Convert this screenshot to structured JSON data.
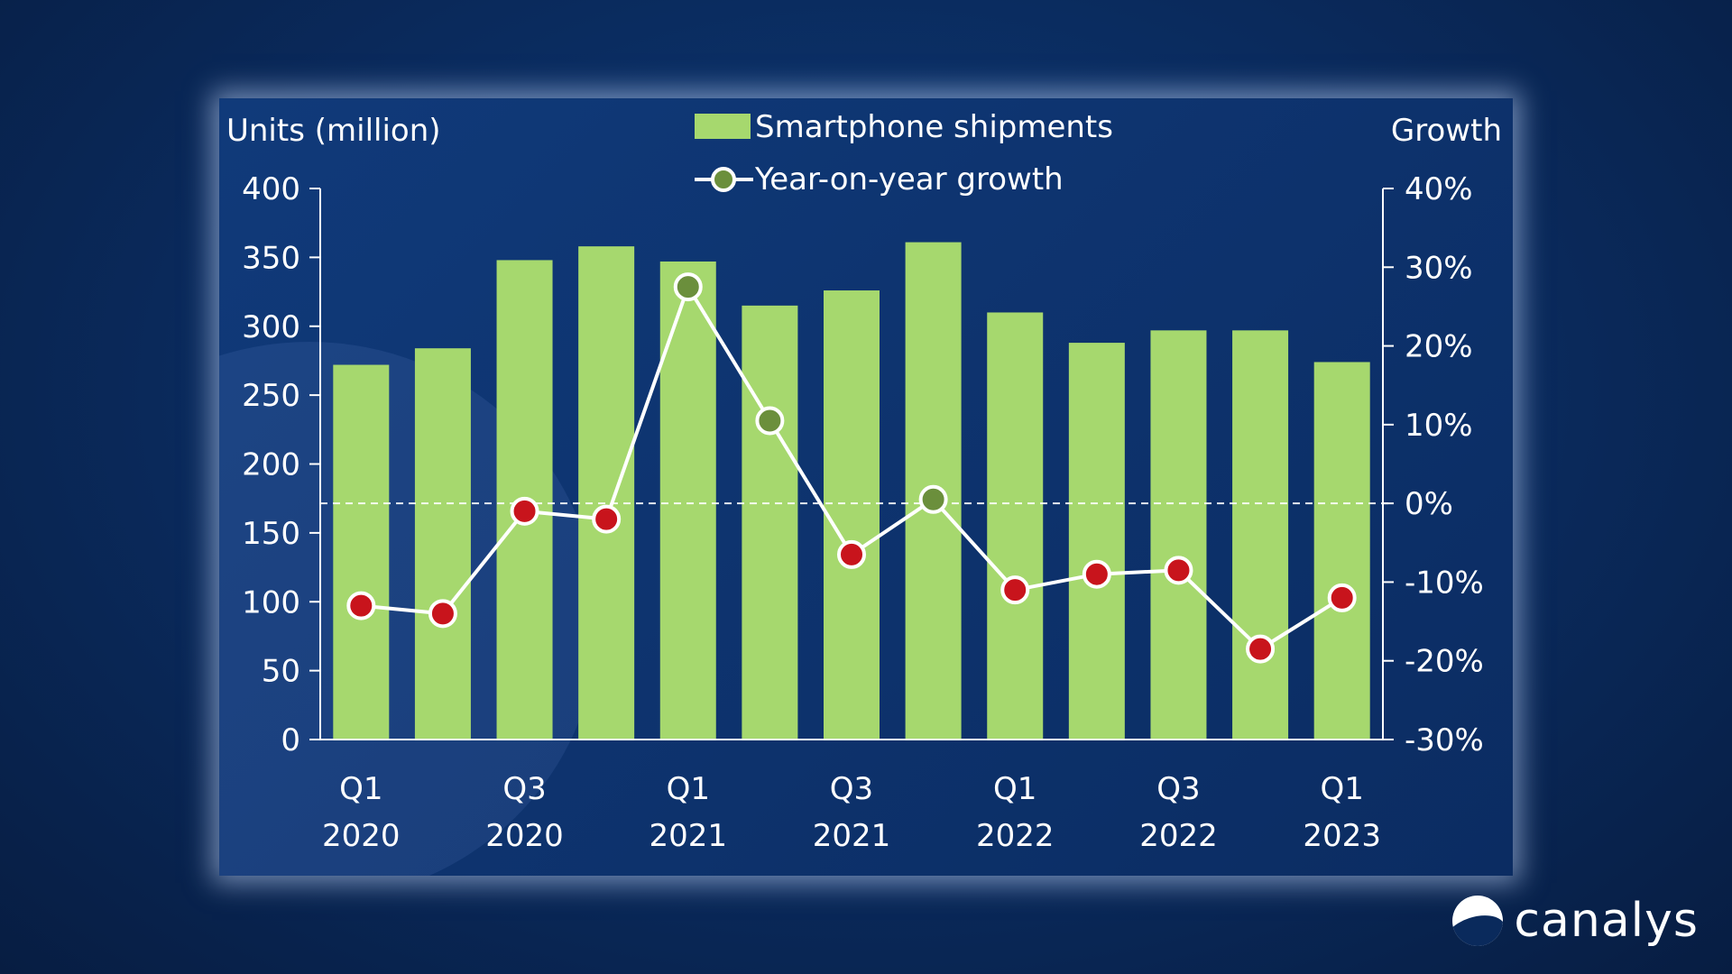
{
  "chart_data": {
    "type": "bar",
    "categories": [
      "Q1 2020",
      "Q2 2020",
      "Q3 2020",
      "Q4 2020",
      "Q1 2021",
      "Q2 2021",
      "Q3 2021",
      "Q4 2021",
      "Q1 2022",
      "Q2 2022",
      "Q3 2022",
      "Q4 2022",
      "Q1 2023"
    ],
    "x_tick_labels": [
      {
        "index": 0,
        "line1": "Q1",
        "line2": "2020"
      },
      {
        "index": 2,
        "line1": "Q3",
        "line2": "2020"
      },
      {
        "index": 4,
        "line1": "Q1",
        "line2": "2021"
      },
      {
        "index": 6,
        "line1": "Q3",
        "line2": "2021"
      },
      {
        "index": 8,
        "line1": "Q1",
        "line2": "2022"
      },
      {
        "index": 10,
        "line1": "Q3",
        "line2": "2022"
      },
      {
        "index": 12,
        "line1": "Q1",
        "line2": "2023"
      }
    ],
    "series": [
      {
        "name": "Smartphone shipments",
        "type": "bar",
        "axis": "left",
        "color": "#a6d86e",
        "values": [
          272,
          284,
          348,
          358,
          347,
          315,
          326,
          361,
          310,
          288,
          297,
          297,
          274
        ]
      },
      {
        "name": "Year-on-year growth",
        "type": "line",
        "axis": "right",
        "color": "#ffffff",
        "values": [
          -13,
          -14,
          -1,
          -2,
          27.5,
          10.5,
          -6.5,
          0.5,
          -11,
          -9,
          -8.5,
          -18.5,
          -12
        ]
      }
    ],
    "ylabel_left": "Units (million)",
    "ylim_left": [
      0,
      400
    ],
    "yticks_left": [
      "400",
      "350",
      "300",
      "250",
      "200",
      "150",
      "100",
      "50",
      "0"
    ],
    "ylabel_right": "Growth",
    "ylim_right": [
      -30,
      40
    ],
    "yticks_right": [
      "40%",
      "30%",
      "20%",
      "10%",
      "0%",
      "-10%",
      "-20%",
      "-30%"
    ],
    "legend_position": "top-center",
    "positive_marker_color": "#6b8f3c",
    "negative_marker_color": "#c8141c",
    "zero_line": "dashed"
  },
  "brand": {
    "name": "canalys"
  }
}
